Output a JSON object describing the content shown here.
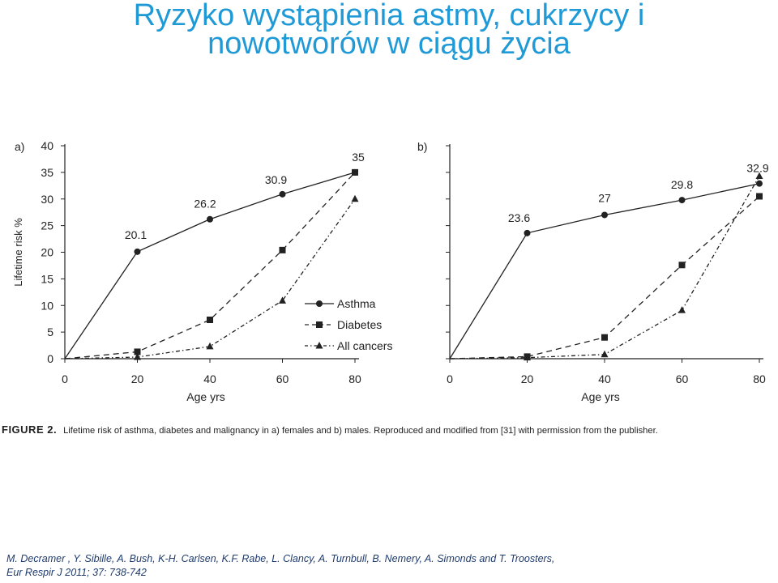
{
  "slide": {
    "title_line1": "Ryzyko wystąpienia astmy, cukrzycy i",
    "title_line2": "nowotworów w ciągu życia"
  },
  "caption": {
    "label": "FIGURE 2.",
    "text": "Lifetime risk of asthma, diabetes and malignancy in a) females and b) males. Reproduced and modified from [31] with permission from the publisher."
  },
  "citation": {
    "line1": "M. Decramer , Y. Sibille, A. Bush, K-H. Carlsen, K.F. Rabe, L. Clancy, A. Turnbull, B. Nemery, A. Simonds and T. Troosters,",
    "line2": "Eur Respir J 2011; 37: 738-742"
  },
  "colors": {
    "title": "#1f9ad6",
    "ink": "#222222",
    "citation": "#1f3b6e"
  },
  "chart_data": [
    {
      "type": "line",
      "panel_label": "a)",
      "xlabel": "Age yrs",
      "ylabel": "Lifetime risk %",
      "xlim": [
        0,
        80
      ],
      "ylim": [
        0,
        40
      ],
      "xticks": [
        0,
        20,
        40,
        60,
        80
      ],
      "yticks": [
        0,
        5,
        10,
        15,
        20,
        25,
        30,
        35,
        40
      ],
      "legend": "right",
      "series": [
        {
          "name": "Asthma",
          "marker": "circle",
          "style": "solid",
          "x": [
            0,
            20,
            40,
            60,
            80
          ],
          "y": [
            0,
            20.1,
            26.2,
            30.9,
            35
          ],
          "point_labels": [
            "",
            "20.1",
            "26.2",
            "30.9",
            "35"
          ]
        },
        {
          "name": "Diabetes",
          "marker": "square",
          "style": "dashed",
          "x": [
            0,
            20,
            40,
            60,
            80
          ],
          "y": [
            0,
            1.3,
            7.3,
            20.4,
            35
          ]
        },
        {
          "name": "All cancers",
          "marker": "triangle",
          "style": "dashdot",
          "x": [
            0,
            20,
            40,
            60,
            80
          ],
          "y": [
            0,
            0.3,
            2.3,
            10.9,
            30
          ]
        }
      ]
    },
    {
      "type": "line",
      "panel_label": "b)",
      "xlabel": "Age yrs",
      "xlim": [
        0,
        80
      ],
      "ylim": [
        0,
        40
      ],
      "xticks": [
        0,
        20,
        40,
        60,
        80
      ],
      "series": [
        {
          "name": "Asthma",
          "marker": "circle",
          "style": "solid",
          "x": [
            0,
            20,
            40,
            60,
            80
          ],
          "y": [
            0,
            23.6,
            27,
            29.8,
            32.9
          ],
          "point_labels": [
            "",
            "23.6",
            "27",
            "29.8",
            "32.9"
          ]
        },
        {
          "name": "Diabetes",
          "marker": "square",
          "style": "dashed",
          "x": [
            0,
            20,
            40,
            60,
            80
          ],
          "y": [
            0,
            0.4,
            4,
            17.6,
            30.5
          ]
        },
        {
          "name": "All cancers",
          "marker": "triangle",
          "style": "dashdot",
          "x": [
            0,
            20,
            40,
            60,
            80
          ],
          "y": [
            0,
            0.2,
            0.8,
            9.1,
            34.3
          ]
        }
      ]
    }
  ]
}
